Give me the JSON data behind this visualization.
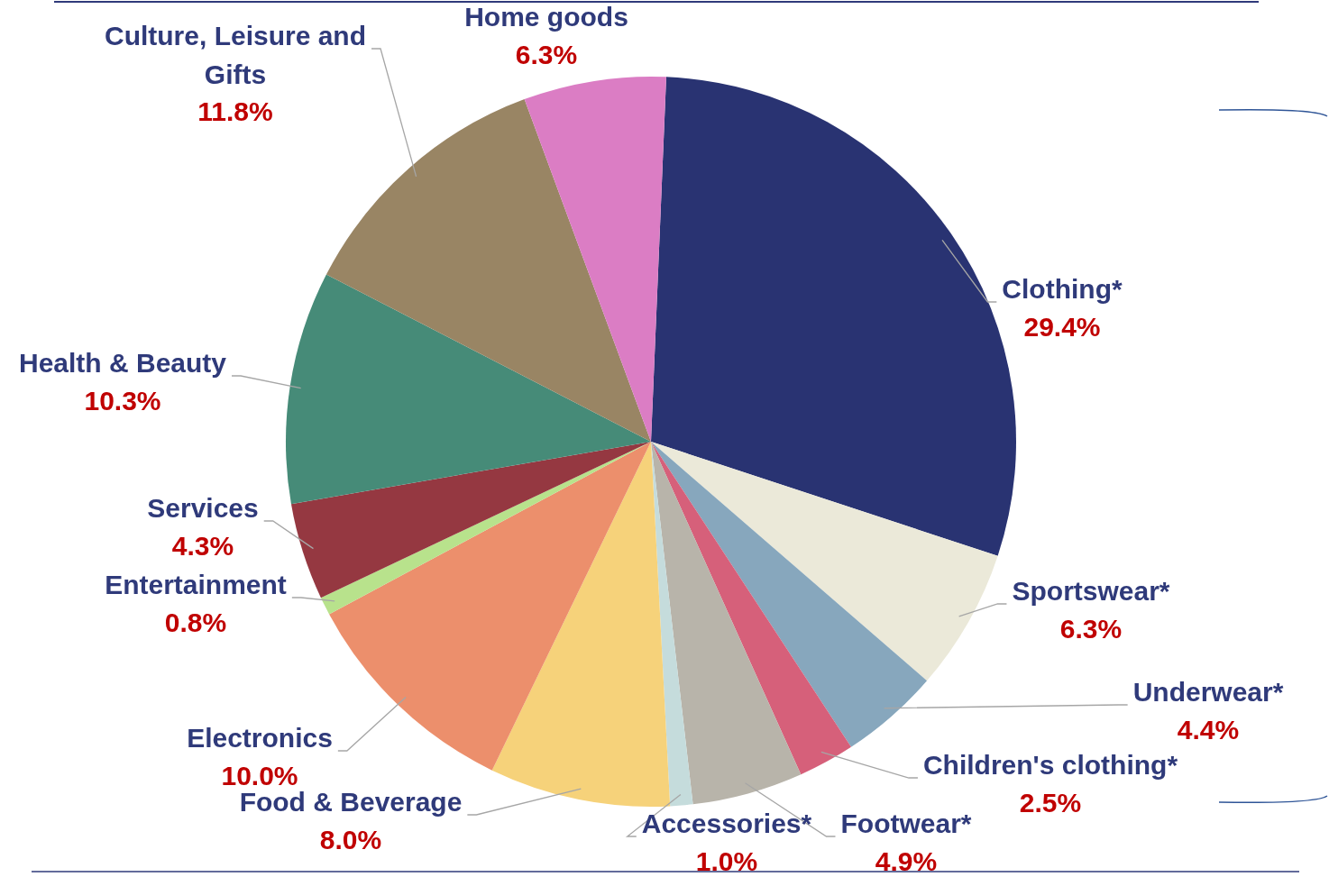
{
  "chart_data": {
    "type": "pie",
    "categories": [
      "Clothing*",
      "Sportswear*",
      "Underwear*",
      "Children's clothing*",
      "Footwear*",
      "Accessories*",
      "Food & Beverage",
      "Electronics",
      "Entertainment",
      "Services",
      "Health & Beauty",
      "Culture, Leisure and Gifts",
      "Home goods"
    ],
    "values": [
      29.4,
      6.3,
      4.4,
      2.5,
      4.9,
      1.0,
      8.0,
      10.0,
      0.8,
      4.3,
      10.3,
      11.8,
      6.3
    ],
    "colors": [
      "#293372",
      "#ebe9d9",
      "#87a7bd",
      "#d6607a",
      "#b8b4aa",
      "#c5dcdc",
      "#f6d27a",
      "#ec8f6c",
      "#b8e28c",
      "#953841",
      "#468b78",
      "#998564",
      "#db7dc4"
    ],
    "value_labels": [
      "29.4%",
      "6.3%",
      "4.4%",
      "2.5%",
      "4.9%",
      "1.0%",
      "8.0%",
      "10.0%",
      "0.8%",
      "4.3%",
      "10.3%",
      "11.8%",
      "6.3%"
    ],
    "legend": false
  }
}
